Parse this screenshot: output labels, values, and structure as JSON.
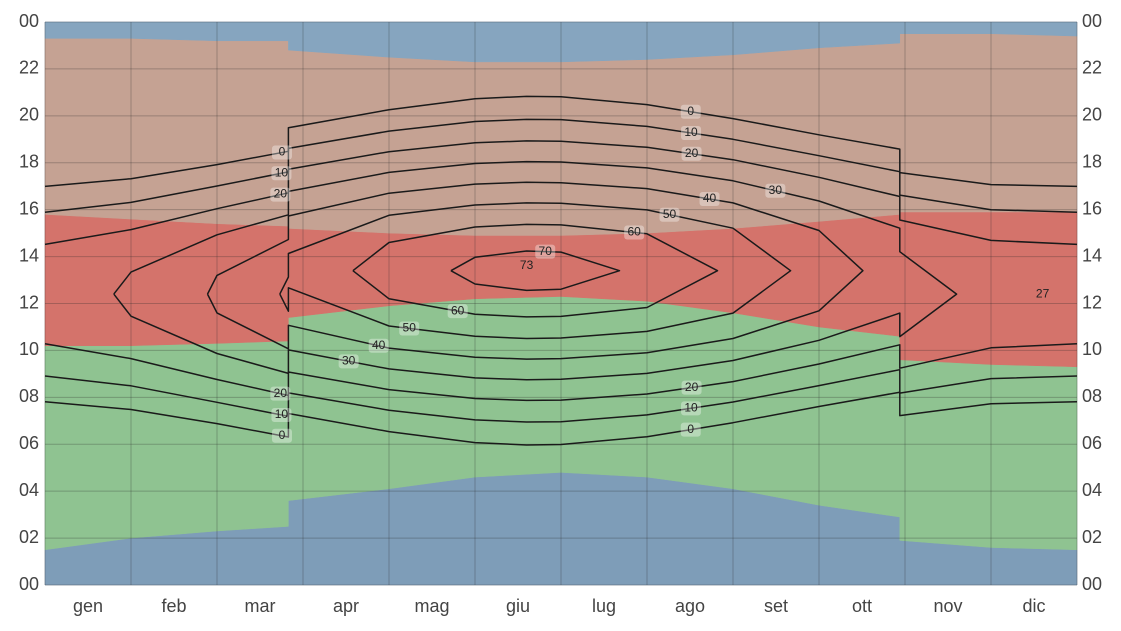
{
  "chart_data": {
    "type": "contour",
    "categories": [
      "gen",
      "feb",
      "mar",
      "apr",
      "mag",
      "giu",
      "lug",
      "ago",
      "set",
      "ott",
      "nov",
      "dic"
    ],
    "xlim": [
      0,
      12
    ],
    "ylim": [
      0,
      24
    ],
    "yticks": [
      {
        "value": 0,
        "label": "00"
      },
      {
        "value": 2,
        "label": "02"
      },
      {
        "value": 4,
        "label": "04"
      },
      {
        "value": 6,
        "label": "06"
      },
      {
        "value": 8,
        "label": "08"
      },
      10,
      12,
      14,
      16,
      18,
      20,
      22,
      {
        "value": 24,
        "label": "00"
      }
    ],
    "grid": true,
    "line_color": "#1a1a1a",
    "bands": {
      "x": [
        0,
        1,
        2,
        2.83,
        2.83,
        4,
        5,
        6,
        7,
        8,
        9,
        9.94,
        9.94,
        11,
        12
      ],
      "boundaries": [
        [
          1.5,
          2.0,
          2.3,
          2.5,
          3.6,
          4.1,
          4.6,
          4.8,
          4.6,
          4.1,
          3.4,
          2.9,
          1.9,
          1.6,
          1.5
        ],
        [
          10.2,
          10.2,
          10.3,
          10.4,
          11.4,
          11.9,
          12.2,
          12.3,
          12.1,
          11.6,
          11.0,
          10.6,
          9.6,
          9.4,
          9.3
        ],
        [
          15.8,
          15.6,
          15.4,
          15.3,
          15.2,
          15.0,
          14.9,
          14.9,
          15.0,
          15.2,
          15.5,
          15.8,
          15.9,
          15.9,
          15.9
        ],
        [
          23.3,
          23.3,
          23.2,
          23.2,
          22.8,
          22.5,
          22.3,
          22.3,
          22.4,
          22.6,
          22.9,
          23.1,
          23.5,
          23.5,
          23.4
        ]
      ],
      "colors": [
        "#7e9db8",
        "#8fc391",
        "#d4736b",
        "#c5a293",
        "#86a5bf"
      ]
    },
    "contours": [
      {
        "level": 0,
        "x": [
          0,
          1,
          2,
          2.83,
          2.83,
          4,
          5,
          5.6,
          6,
          7,
          8,
          9,
          9.94,
          9.94,
          11,
          12,
          null,
          0,
          1,
          2,
          2.83,
          2.83,
          4,
          5,
          5.6,
          6,
          7,
          8,
          9,
          9.94,
          9.94,
          11,
          12
        ],
        "y": [
          7.81,
          7.48,
          6.88,
          6.31,
          7.31,
          6.54,
          6.07,
          5.97,
          5.99,
          6.32,
          6.92,
          7.61,
          8.22,
          7.22,
          7.73,
          7.81,
          null,
          16.99,
          17.32,
          17.92,
          18.49,
          19.49,
          20.26,
          20.73,
          20.83,
          20.81,
          20.48,
          19.88,
          19.19,
          18.58,
          17.58,
          17.07,
          16.99
        ]
      },
      {
        "level": 10,
        "x": [
          0,
          1,
          2,
          2.83,
          2.83,
          4,
          5,
          5.6,
          6,
          7,
          8,
          9,
          9.94,
          9.94,
          11,
          12,
          null,
          0,
          1,
          2,
          2.83,
          2.83,
          4,
          5,
          5.6,
          6,
          7,
          8,
          9,
          9.94,
          9.94,
          11,
          12
        ],
        "y": [
          8.91,
          8.49,
          7.79,
          7.19,
          8.19,
          7.45,
          7.04,
          6.95,
          6.96,
          7.25,
          7.8,
          8.5,
          9.18,
          8.18,
          8.8,
          8.91,
          null,
          15.89,
          16.31,
          17.01,
          17.61,
          18.61,
          19.35,
          19.76,
          19.85,
          19.84,
          19.55,
          19.0,
          18.3,
          17.62,
          16.62,
          16.0,
          15.89
        ]
      },
      {
        "level": 20,
        "x": [
          0,
          1,
          2,
          2.83,
          2.83,
          4,
          5,
          5.6,
          6,
          7,
          8,
          9,
          9.94,
          9.94,
          11,
          12,
          null,
          0,
          1,
          2,
          2.83,
          2.83,
          4,
          5,
          5.6,
          6,
          7,
          8,
          9,
          9.94,
          9.94,
          11,
          12
        ],
        "y": [
          10.28,
          9.65,
          8.76,
          8.08,
          9.08,
          8.33,
          7.95,
          7.87,
          7.88,
          8.14,
          8.67,
          9.42,
          10.24,
          9.24,
          10.11,
          10.28,
          null,
          14.52,
          15.15,
          16.04,
          16.72,
          17.72,
          18.47,
          18.85,
          18.93,
          18.92,
          18.66,
          18.13,
          17.38,
          16.56,
          15.56,
          14.69,
          14.52
        ]
      },
      {
        "level": 30,
        "x": [
          0.8,
          1,
          2,
          2.83,
          2.83,
          4,
          5,
          5.6,
          6,
          7,
          8,
          9,
          9.94,
          9.94,
          10.6,
          9.94,
          9.94,
          9,
          8,
          7,
          6,
          5.6,
          5,
          4,
          2.83,
          2.83,
          2,
          1,
          0.8
        ],
        "y": [
          12.4,
          11.46,
          9.87,
          9.02,
          10.02,
          9.21,
          8.83,
          8.75,
          8.77,
          9.02,
          9.57,
          10.43,
          11.59,
          10.59,
          12.4,
          14.21,
          15.21,
          16.37,
          17.23,
          17.78,
          18.03,
          18.05,
          17.97,
          17.59,
          16.78,
          15.78,
          14.93,
          13.34,
          12.4
        ]
      },
      {
        "level": 40,
        "x": [
          1.89,
          2,
          2.83,
          2.83,
          4,
          5,
          5.6,
          6,
          7,
          8,
          9,
          9.51,
          9,
          8,
          7,
          6,
          5.6,
          5,
          4,
          2.83,
          2.83,
          2,
          1.89
        ],
        "y": [
          12.4,
          11.6,
          10.07,
          11.07,
          10.1,
          9.71,
          9.63,
          9.65,
          9.9,
          10.51,
          11.69,
          13.4,
          15.11,
          16.29,
          16.9,
          17.15,
          17.17,
          17.09,
          16.7,
          15.73,
          14.73,
          13.2,
          12.4
        ]
      },
      {
        "level": 50,
        "x": [
          2.73,
          2.83,
          2.83,
          4,
          5,
          5.6,
          6,
          7,
          8,
          8.67,
          8,
          7,
          6,
          5.6,
          5,
          4,
          2.83,
          2.83,
          2.73
        ],
        "y": [
          12.4,
          11.67,
          12.67,
          11.04,
          10.6,
          10.51,
          10.53,
          10.81,
          11.59,
          13.4,
          15.21,
          15.99,
          16.27,
          16.29,
          16.2,
          15.76,
          14.13,
          13.13,
          12.4
        ]
      },
      {
        "level": 60,
        "x": [
          3.58,
          4,
          5,
          5.6,
          6,
          7,
          7.82,
          7,
          6,
          5.6,
          5,
          4,
          3.58
        ],
        "y": [
          13.4,
          12.2,
          11.54,
          11.43,
          11.45,
          11.83,
          13.4,
          14.97,
          15.35,
          15.37,
          15.26,
          14.6,
          13.4
        ]
      },
      {
        "level": 70,
        "x": [
          4.72,
          5,
          5.6,
          6,
          6.68,
          6,
          5.6,
          5,
          4.72
        ],
        "y": [
          13.4,
          12.83,
          12.56,
          12.61,
          13.4,
          14.19,
          14.24,
          13.97,
          13.4
        ]
      }
    ],
    "annotations": [
      {
        "text": "73",
        "x": 5.6,
        "y": 13.6
      },
      {
        "text": "27",
        "x": 11.6,
        "y": 12.4
      }
    ]
  }
}
